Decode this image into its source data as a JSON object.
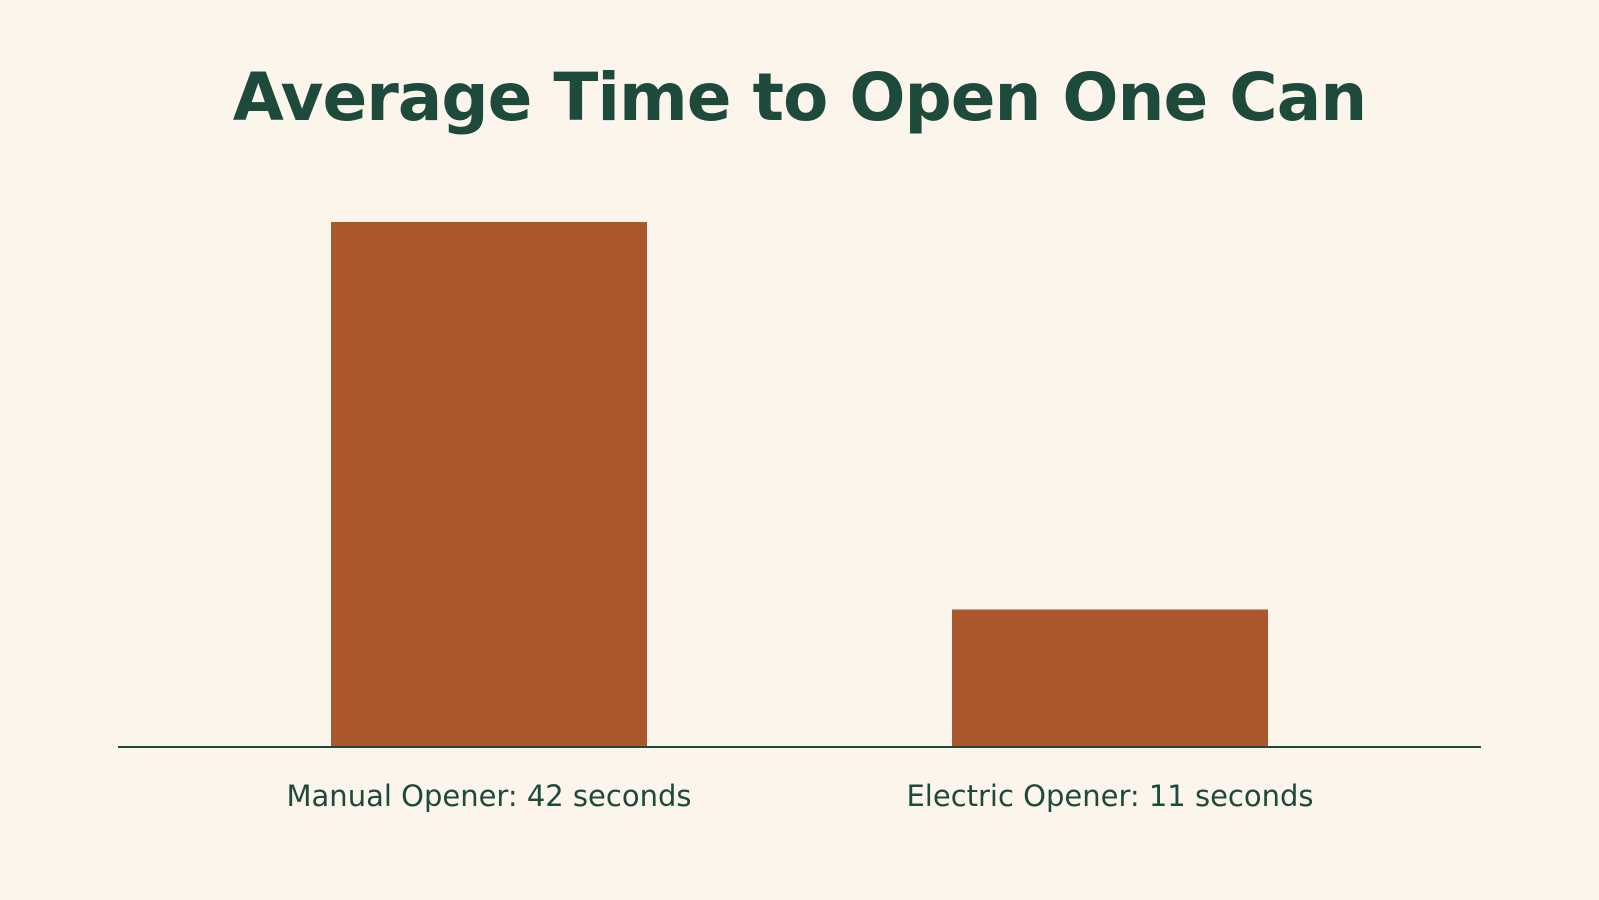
{
  "colors": {
    "background": "#fbf5ec",
    "bar": "#ab572d",
    "text": "#1e4a3b",
    "axis": "#1e4a3b"
  },
  "chart_data": {
    "type": "bar",
    "title": "Average Time to Open One Can",
    "xlabel": "",
    "ylabel": "",
    "categories": [
      "Manual Opener",
      "Electric Opener"
    ],
    "category_labels": [
      "Manual Opener: 42 seconds",
      "Electric Opener: 11 seconds"
    ],
    "values": [
      42,
      11
    ],
    "unit": "seconds",
    "ylim": [
      0,
      42
    ],
    "grid": false,
    "legend": "none"
  }
}
